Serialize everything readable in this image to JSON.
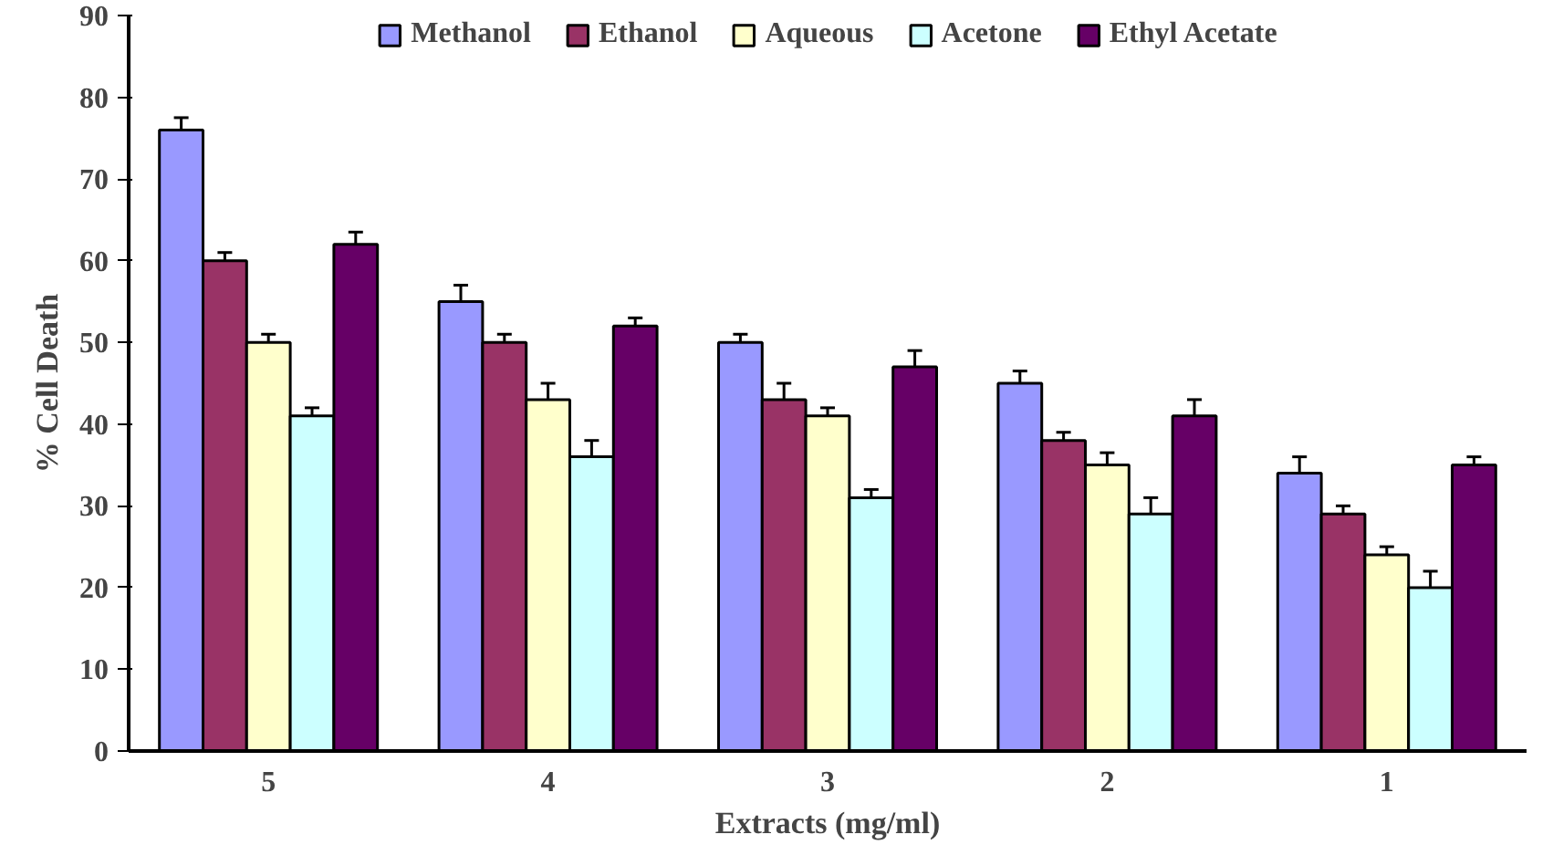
{
  "chart_data": {
    "type": "bar",
    "xlabel": "Extracts (mg/ml)",
    "ylabel": "% Cell Death",
    "categories": [
      "5",
      "4",
      "3",
      "2",
      "1"
    ],
    "series": [
      {
        "name": "Methanol",
        "color": "#9999ff",
        "values": [
          76,
          55,
          50,
          45,
          34
        ],
        "errors": [
          1.5,
          2,
          1,
          1.5,
          2
        ]
      },
      {
        "name": "Ethanol",
        "color": "#993366",
        "values": [
          60,
          50,
          43,
          38,
          29
        ],
        "errors": [
          1,
          1,
          2,
          1,
          1
        ]
      },
      {
        "name": "Aqueous",
        "color": "#ffffcc",
        "values": [
          50,
          43,
          41,
          35,
          24
        ],
        "errors": [
          1,
          2,
          1,
          1.5,
          1
        ]
      },
      {
        "name": "Acetone",
        "color": "#ccffff",
        "values": [
          41,
          36,
          31,
          29,
          20
        ],
        "errors": [
          1,
          2,
          1,
          2,
          2
        ]
      },
      {
        "name": "Ethyl Acetate",
        "color": "#660066",
        "values": [
          62,
          52,
          47,
          41,
          35
        ],
        "errors": [
          1.5,
          1,
          2,
          2,
          1
        ]
      }
    ],
    "ylim": [
      0,
      90
    ],
    "yticks": [
      0,
      10,
      20,
      30,
      40,
      50,
      60,
      70,
      80,
      90
    ],
    "grid": false,
    "legend": "top"
  }
}
